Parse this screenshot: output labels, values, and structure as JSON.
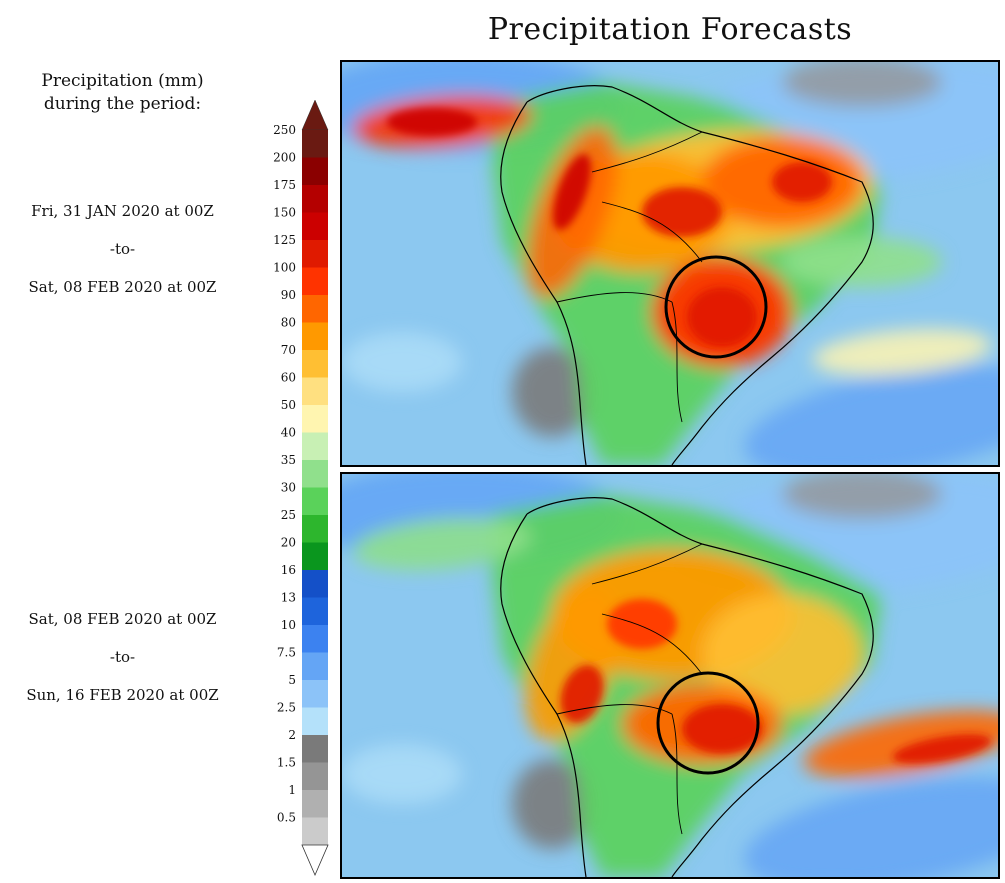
{
  "title": "Precipitation Forecasts",
  "legend": {
    "title_line1": "Precipitation (mm)",
    "title_line2": "during the period:",
    "levels": [
      "250",
      "200",
      "175",
      "150",
      "125",
      "100",
      "90",
      "80",
      "70",
      "60",
      "50",
      "40",
      "35",
      "30",
      "25",
      "20",
      "16",
      "13",
      "10",
      "7.5",
      "5",
      "2.5",
      "2",
      "1.5",
      "1",
      "0.5"
    ],
    "colors": [
      "#6a1a12",
      "#8b0000",
      "#b40000",
      "#cc0000",
      "#e01a00",
      "#ff3300",
      "#ff6600",
      "#ff9900",
      "#ffbf33",
      "#ffe080",
      "#fff5b0",
      "#c8f0b4",
      "#90e08c",
      "#5ad25a",
      "#2db62d",
      "#0a961e",
      "#1450c8",
      "#1e64dc",
      "#3c82f0",
      "#64a5f5",
      "#8cc3f8",
      "#b4e1fa",
      "#7a7a7a",
      "#959595",
      "#b0b0b0",
      "#cbcbcb"
    ],
    "top_color": "#6a1a12",
    "bottom_color": "#ffffff"
  },
  "periods": [
    {
      "start": "Fri, 31 JAN 2020 at 00Z",
      "sep": "-to-",
      "end": "Sat, 08 FEB 2020 at 00Z"
    },
    {
      "start": "Sat, 08 FEB 2020 at 00Z",
      "sep": "-to-",
      "end": "Sun, 16 FEB 2020 at 00Z"
    }
  ],
  "maps": {
    "ocean_color": "#8cc8f0",
    "land_outline_color": "#000000",
    "circle_color": "#000000"
  }
}
